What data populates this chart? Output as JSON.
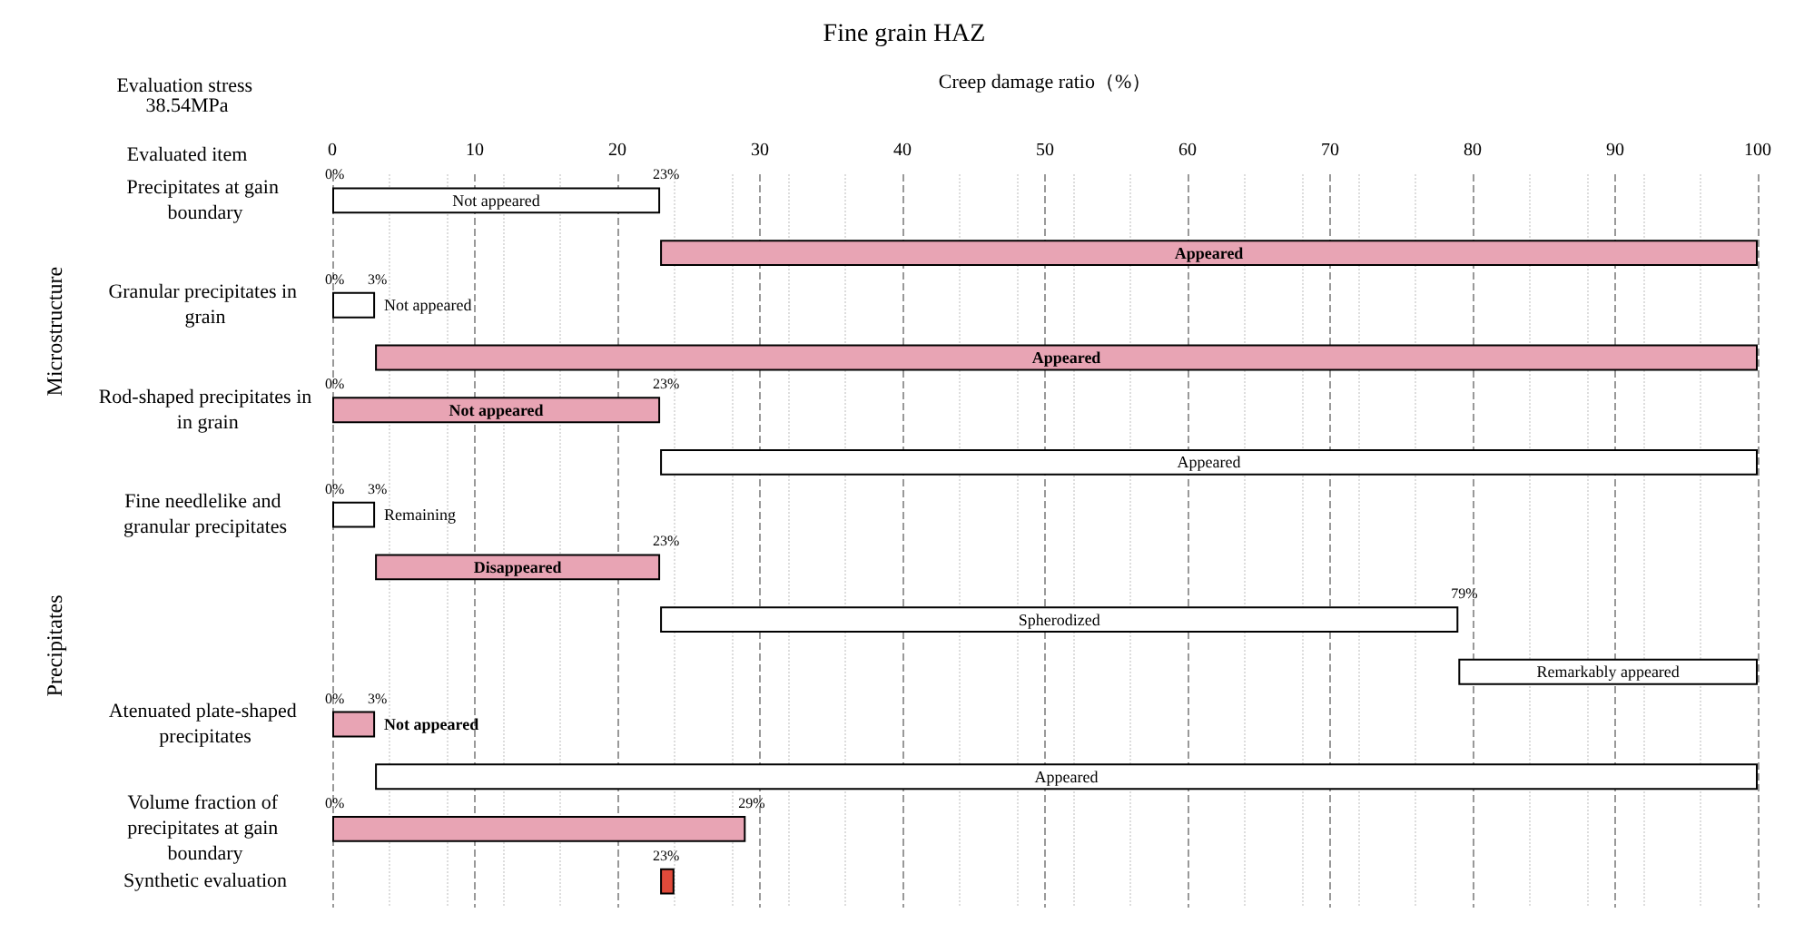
{
  "chart_data": {
    "type": "bar",
    "orientation": "horizontal",
    "title": "Fine grain HAZ",
    "subtitle": "Evaluation stress 38.54MPa",
    "ylabel": "Evaluated item",
    "xlabel": "Creep damage ratio（%）",
    "categories": [
      "Precipitates at gain boundary",
      null,
      "Granular precipitates in grain",
      null,
      "Rod-shaped precipitates in in grain",
      null,
      "Fine needlelike and granular precipitates",
      null,
      null,
      null,
      "Atenuated plate-shaped precipitates",
      null,
      "Volume fraction of precipitates at gain boundary",
      "Synthetic evaluation"
    ],
    "base": [
      0,
      23,
      0,
      3,
      0,
      23,
      0,
      3,
      23,
      79,
      0,
      3,
      0,
      23
    ],
    "values": [
      23,
      77,
      3,
      97,
      23,
      77,
      3,
      20,
      56,
      21,
      3,
      97,
      29,
      1
    ],
    "colors": [
      "#ffffff",
      "#e8a4b4",
      "#ffffff",
      "#e8a4b4",
      "#e8a4b4",
      "#ffffff",
      "#ffffff",
      "#e8a4b4",
      "#ffffff",
      "#ffffff",
      "#e8a4b4",
      "#ffffff",
      "#e8a4b4",
      "#e04a3a"
    ],
    "value_labels": [
      "Not appeared",
      "Appeared",
      "Not appeared",
      "Appeared",
      "Not appeared",
      "Appeared",
      "Remaining",
      "Disappeared",
      "Spherodized",
      "Remarkably appeared",
      "Not appeared",
      "Appeared",
      null,
      null
    ],
    "xlim": [
      0,
      100
    ],
    "xticks": [
      0,
      10,
      20,
      30,
      40,
      50,
      60,
      70,
      80,
      90,
      100
    ],
    "grid": "x",
    "annotations": [
      "Microstructure",
      "Precipitates",
      {
        "text": "0%",
        "x": 0,
        "y": "Precipitates at gain boundary"
      },
      {
        "text": "23%",
        "x": 23,
        "y": "Precipitates at gain boundary"
      },
      {
        "text": "0%",
        "x": 0,
        "y": "Granular precipitates in grain"
      },
      {
        "text": "3%",
        "x": 3,
        "y": "Granular precipitates in grain"
      },
      {
        "text": "0%",
        "x": 0,
        "y": "Rod-shaped precipitates in in grain"
      },
      {
        "text": "23%",
        "x": 23,
        "y": "Rod-shaped precipitates in in grain"
      },
      {
        "text": "0%",
        "x": 0,
        "y": "Fine needlelike and granular precipitates"
      },
      {
        "text": "3%",
        "x": 3,
        "y": "Fine needlelike and granular precipitates"
      },
      "23%",
      "79%",
      {
        "text": "0%",
        "x": 0,
        "y": "Atenuated plate-shaped precipitates"
      },
      {
        "text": "3%",
        "x": 3,
        "y": "Atenuated plate-shaped precipitates"
      },
      {
        "text": "0%",
        "x": 0,
        "y": "Volume fraction of precipitates at gain boundary"
      },
      {
        "text": "29%",
        "x": 29,
        "y": "Volume fraction of precipitates at gain boundary"
      },
      {
        "text": "23%",
        "x": 23,
        "y": "Synthetic evaluation"
      }
    ]
  }
}
